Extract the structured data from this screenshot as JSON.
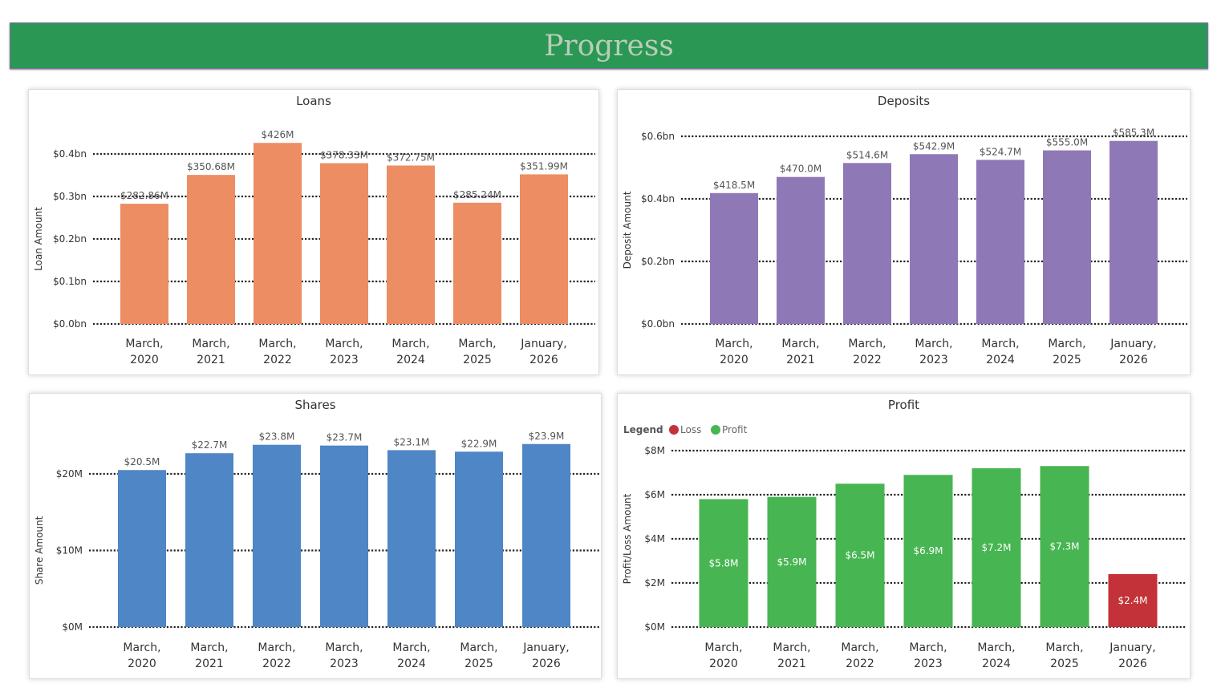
{
  "header": {
    "title": "Progress"
  },
  "chart_data": [
    {
      "type": "bar",
      "title": "Loans",
      "ylabel": "Loan Amount",
      "xlabel": "",
      "categories": [
        [
          "March,",
          "2020"
        ],
        [
          "March,",
          "2021"
        ],
        [
          "March,",
          "2022"
        ],
        [
          "March,",
          "2023"
        ],
        [
          "March,",
          "2024"
        ],
        [
          "March,",
          "2025"
        ],
        [
          "January,",
          "2026"
        ]
      ],
      "values": [
        0.28286,
        0.35068,
        0.426,
        0.37833,
        0.37275,
        0.28524,
        0.35199
      ],
      "data_labels": [
        "$282.86M",
        "$350.68M",
        "$426M",
        "$378.33M",
        "$372.75M",
        "$285.24M",
        "$351.99M"
      ],
      "yticks": [
        0,
        0.1,
        0.2,
        0.3,
        0.4
      ],
      "ytick_labels": [
        "$0.0bn",
        "$0.1bn",
        "$0.2bn",
        "$0.3bn",
        "$0.4bn"
      ],
      "grid": true,
      "color": "#ec8d64"
    },
    {
      "type": "bar",
      "title": "Deposits",
      "ylabel": "Deposit Amount",
      "xlabel": "",
      "categories": [
        [
          "March,",
          "2020"
        ],
        [
          "March,",
          "2021"
        ],
        [
          "March,",
          "2022"
        ],
        [
          "March,",
          "2023"
        ],
        [
          "March,",
          "2024"
        ],
        [
          "March,",
          "2025"
        ],
        [
          "January,",
          "2026"
        ]
      ],
      "values": [
        0.4185,
        0.47,
        0.5146,
        0.5429,
        0.5247,
        0.555,
        0.5853
      ],
      "data_labels": [
        "$418.5M",
        "$470.0M",
        "$514.6M",
        "$542.9M",
        "$524.7M",
        "$555.0M",
        "$585.3M"
      ],
      "yticks": [
        0,
        0.2,
        0.4,
        0.6
      ],
      "ytick_labels": [
        "$0.0bn",
        "$0.2bn",
        "$0.4bn",
        "$0.6bn"
      ],
      "grid": true,
      "color": "#8e79b6"
    },
    {
      "type": "bar",
      "title": "Shares",
      "ylabel": "Share Amount",
      "xlabel": "",
      "categories": [
        [
          "March,",
          "2020"
        ],
        [
          "March,",
          "2021"
        ],
        [
          "March,",
          "2022"
        ],
        [
          "March,",
          "2023"
        ],
        [
          "March,",
          "2024"
        ],
        [
          "March,",
          "2025"
        ],
        [
          "January,",
          "2026"
        ]
      ],
      "values": [
        20.5,
        22.7,
        23.8,
        23.7,
        23.1,
        22.9,
        23.9
      ],
      "data_labels": [
        "$20.5M",
        "$22.7M",
        "$23.8M",
        "$23.7M",
        "$23.1M",
        "$22.9M",
        "$23.9M"
      ],
      "yticks": [
        0,
        10,
        20
      ],
      "ytick_labels": [
        "$0M",
        "$10M",
        "$20M"
      ],
      "grid": true,
      "color": "#4f86c6"
    },
    {
      "type": "bar",
      "title": "Profit",
      "ylabel": "Profit/Loss Amount",
      "xlabel": "",
      "legend": {
        "title": "Legend",
        "items": [
          {
            "name": "Loss",
            "color": "#c33238"
          },
          {
            "name": "Profit",
            "color": "#47b552"
          }
        ],
        "placement": "top-left"
      },
      "categories": [
        [
          "March,",
          "2020"
        ],
        [
          "March,",
          "2021"
        ],
        [
          "March,",
          "2022"
        ],
        [
          "March,",
          "2023"
        ],
        [
          "March,",
          "2024"
        ],
        [
          "March,",
          "2025"
        ],
        [
          "January,",
          "2026"
        ]
      ],
      "values": [
        5.8,
        5.9,
        6.5,
        6.9,
        7.2,
        7.3,
        2.4
      ],
      "series_type": [
        "Profit",
        "Profit",
        "Profit",
        "Profit",
        "Profit",
        "Profit",
        "Loss"
      ],
      "data_labels": [
        "$5.8M",
        "$5.9M",
        "$6.5M",
        "$6.9M",
        "$7.2M",
        "$7.3M",
        "$2.4M"
      ],
      "yticks": [
        0,
        2,
        4,
        6,
        8
      ],
      "ytick_labels": [
        "$0M",
        "$2M",
        "$4M",
        "$6M",
        "$8M"
      ],
      "grid": true
    }
  ]
}
